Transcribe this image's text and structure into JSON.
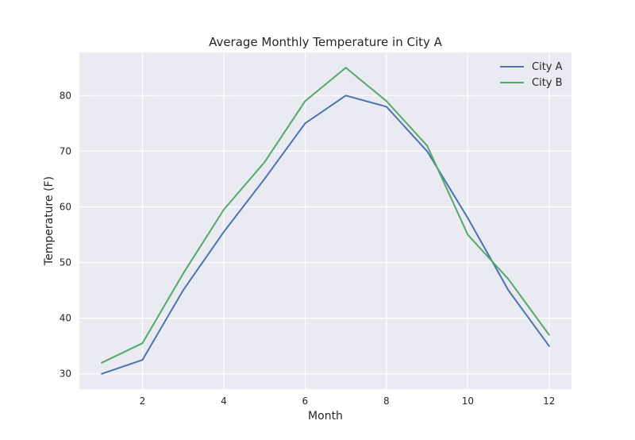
{
  "chart_data": {
    "type": "line",
    "title": "Average Monthly Temperature in City A",
    "xlabel": "Month",
    "ylabel": "Temperature (F)",
    "x": [
      1,
      2,
      3,
      4,
      5,
      6,
      7,
      8,
      9,
      10,
      11,
      12
    ],
    "xlim": [
      0.45,
      12.55
    ],
    "ylim": [
      27.25,
      87.75
    ],
    "xticks": [
      2,
      4,
      6,
      8,
      10,
      12
    ],
    "yticks": [
      30,
      40,
      50,
      60,
      70,
      80
    ],
    "grid": true,
    "legend_position": "top-right",
    "series": [
      {
        "name": "City A",
        "color": "#4c72b0",
        "values": [
          30,
          32.5,
          45,
          55.5,
          65,
          75,
          80,
          78,
          70,
          58,
          45,
          35
        ]
      },
      {
        "name": "City B",
        "color": "#55a868",
        "values": [
          32,
          35.5,
          48,
          59.5,
          68,
          79,
          85,
          79,
          71,
          55,
          47,
          37
        ]
      }
    ],
    "colors": {
      "plot_background": "#eaeaf2",
      "grid": "#ffffff",
      "text": "#262626"
    }
  }
}
